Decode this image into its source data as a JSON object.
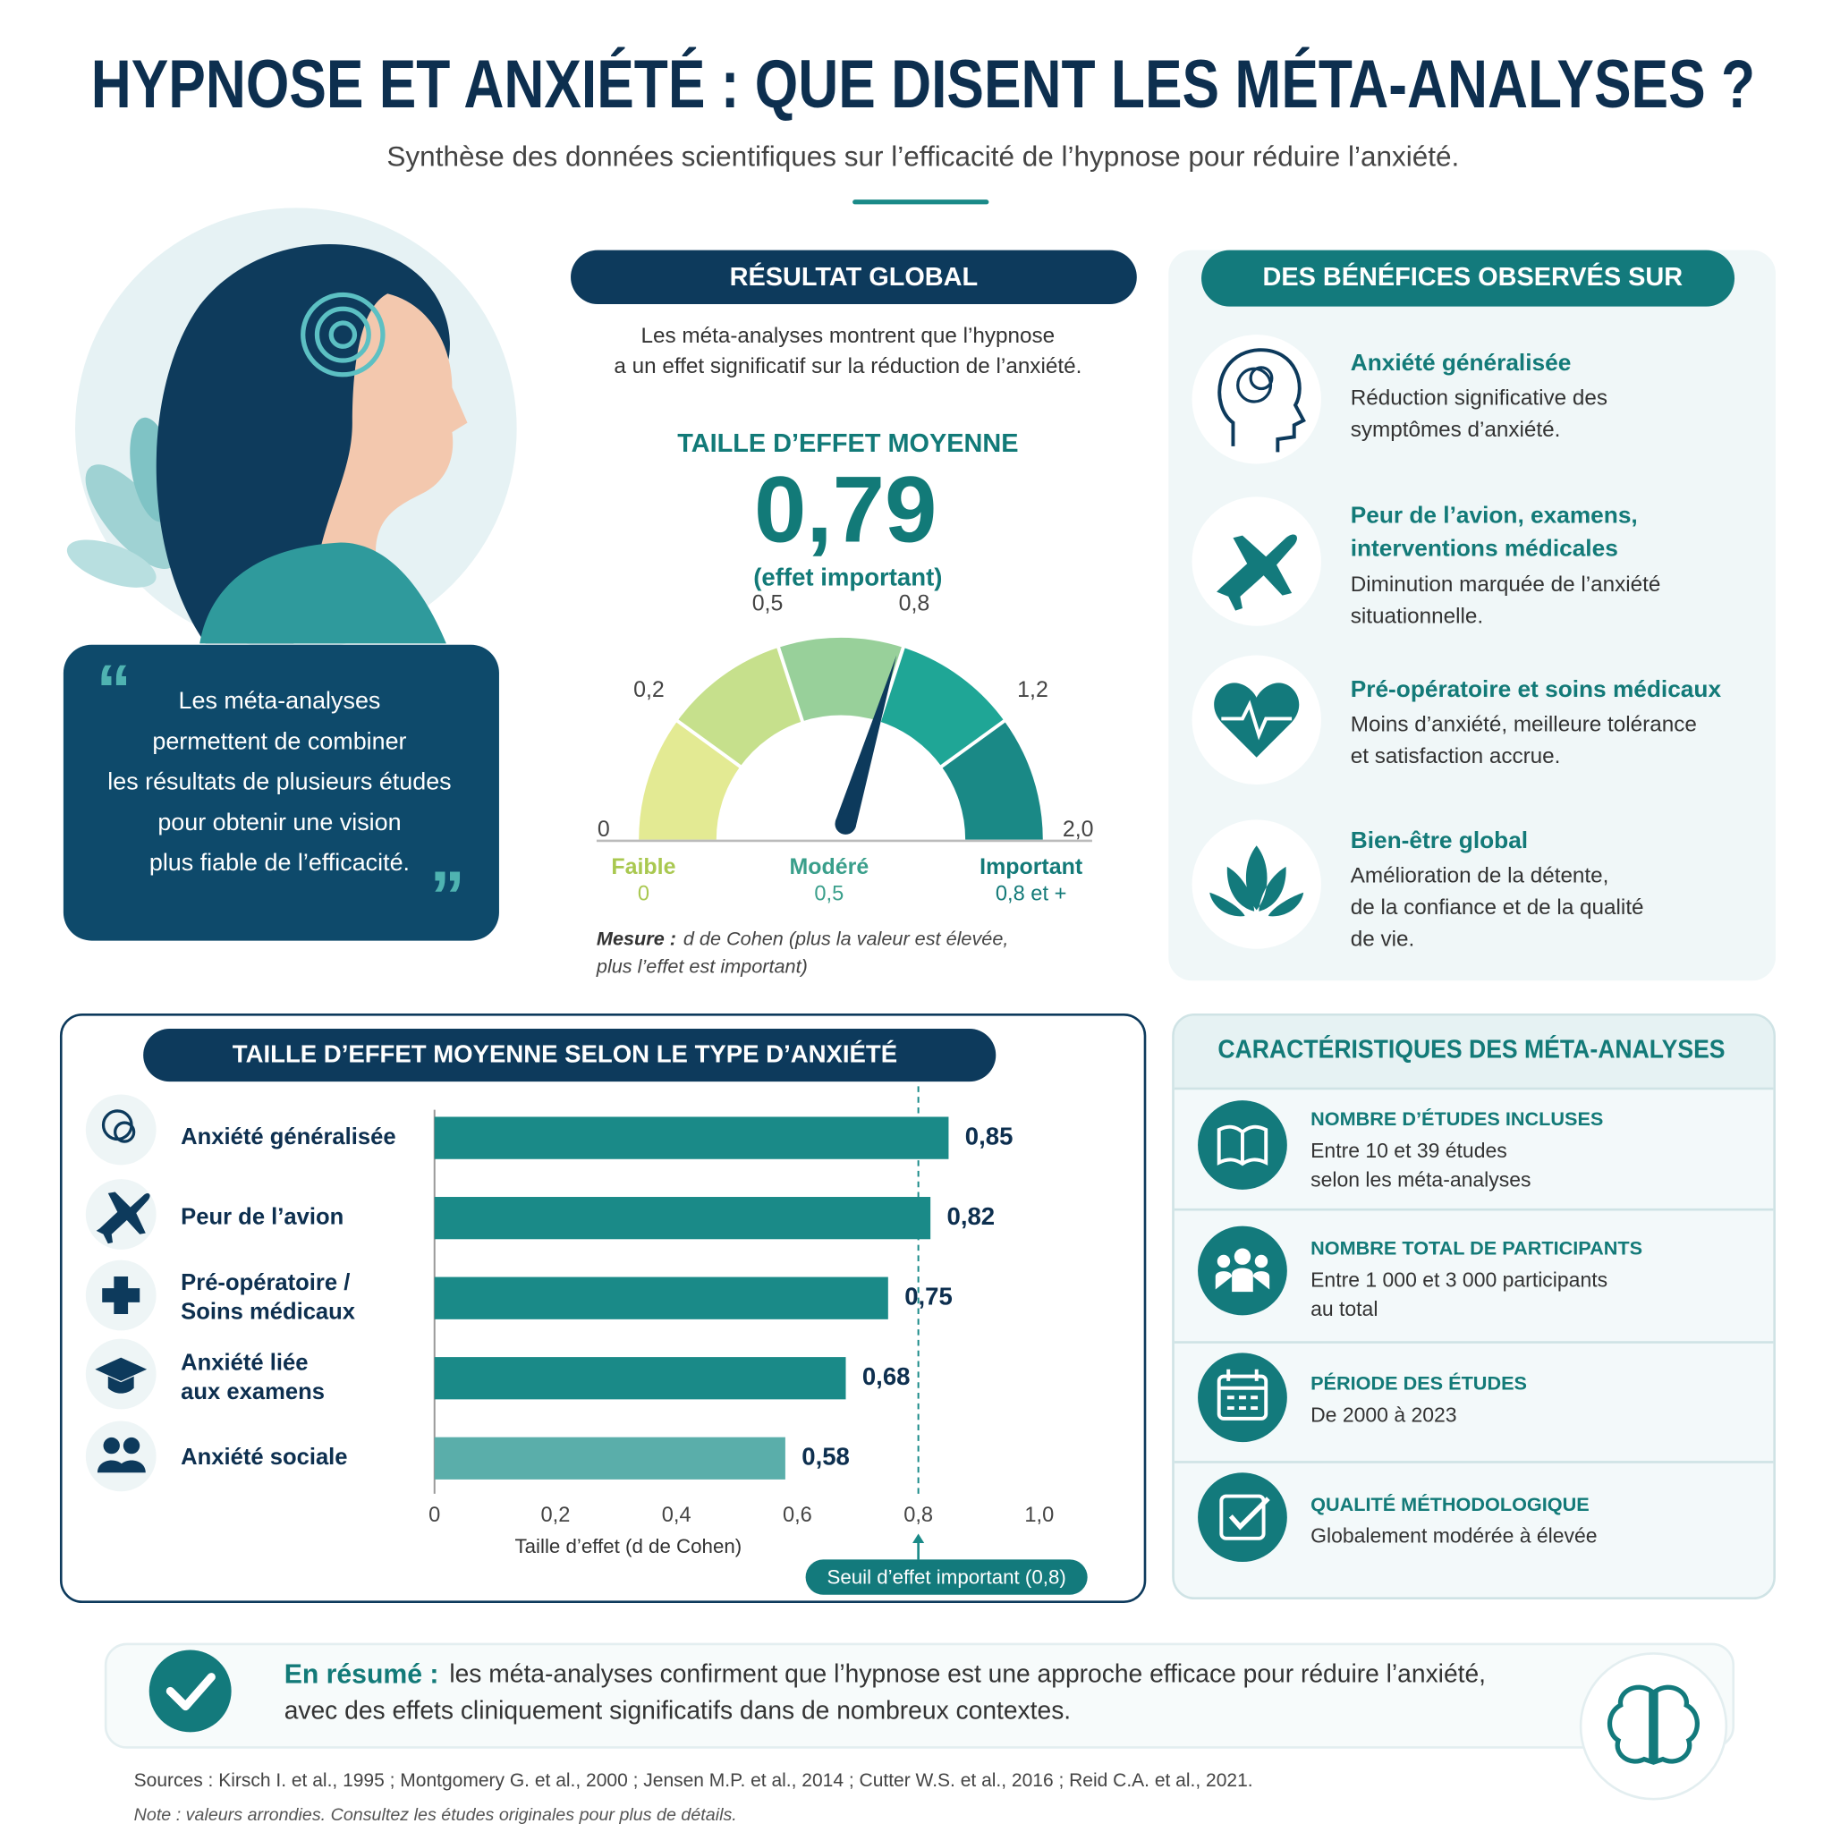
{
  "header": {
    "title": "HYPNOSE ET ANXIÉTÉ : QUE DISENT LES MÉTA-ANALYSES ?",
    "subtitle": "Synthèse des données scientifiques sur l’efficacité de l’hypnose pour réduire l’anxiété."
  },
  "quote": {
    "text": "Les méta-analyses\npermettent de combiner\nles résultats de plusieurs études\npour obtenir une vision\nplus fiable de l’efficacité."
  },
  "global_result": {
    "heading": "RÉSULTAT GLOBAL",
    "intro": "Les méta-analyses montrent que l’hypnose\na un effet significatif sur la réduction de l’anxiété."
  },
  "chart_data": [
    {
      "type": "gauge",
      "title": "TAILLE D’EFFET MOYENNE",
      "values": [
        0.79
      ],
      "value_labels": [
        "0,79"
      ],
      "subtitle": "(effet important)",
      "ticks": [
        0,
        {
          "value": 0.2,
          "label": "0,2"
        },
        {
          "value": 0.5,
          "label": "0,5"
        },
        {
          "value": 0.8,
          "label": "0,8"
        },
        {
          "value": 1.2,
          "label": "1,2"
        },
        {
          "value": 2,
          "label": "2,0"
        }
      ],
      "colors": [
        "#e3ea93",
        "#c6e08c",
        "#98d09a",
        "#1fa696",
        "#1a8986"
      ],
      "zones": [
        {
          "name": "Faible",
          "value": 0,
          "color": "#a9c850"
        },
        {
          "name": "Modéré",
          "value": {
            "value": 0.5,
            "label": "0,5"
          },
          "color": "#3a9f8b"
        },
        {
          "name": "Important",
          "value": {
            "value": 0.8,
            "label": "0,8 et +"
          },
          "color": "#137a78"
        }
      ],
      "note_label": "Mesure :",
      "note": [
        "d de Cohen (plus la valeur est élevée,",
        "plus l’effet est important)"
      ]
    },
    {
      "type": "bar",
      "orientation": "horizontal",
      "title": "TAILLE D’EFFET MOYENNE SELON LE TYPE D’ANXIÉTÉ",
      "categories": [
        "Anxiété généralisée",
        "Peur de l’avion",
        "Pré-opératoire /\nSoins médicaux",
        "Anxiété liée\naux examens",
        "Anxiété sociale"
      ],
      "values": [
        0.85,
        0.82,
        0.75,
        0.68,
        0.58
      ],
      "value_labels": [
        "0,85",
        "0,82",
        "0,75",
        "0,68",
        "0,58"
      ],
      "colors": [
        "#1a8a88",
        "#1a8a88",
        "#1a8a88",
        "#1a8a88",
        "#5aaeaa"
      ],
      "xlim": [
        0,
        1
      ],
      "xticks": [
        0,
        {
          "value": 0.2,
          "label": "0,2"
        },
        {
          "value": 0.4,
          "label": "0,4"
        },
        {
          "value": 0.6,
          "label": "0,6"
        },
        {
          "value": 0.8,
          "label": "0,8"
        },
        {
          "value": 1,
          "label": "1,0"
        }
      ],
      "x_label": "Taille d’effet (d de Cohen)",
      "threshold": {
        "value": 0.8,
        "label": "Seuil d’effet important (0,8)"
      }
    }
  ],
  "benefits": {
    "heading": "DES BÉNÉFICES OBSERVÉS SUR",
    "items": [
      {
        "title": "Anxiété généralisée",
        "text": "Réduction significative des\nsymptômes d’anxiété."
      },
      {
        "title": "Peur de l’avion, examens,\ninterventions médicales",
        "text": "Diminution marquée de l’anxiété\nsituationnelle."
      },
      {
        "title": "Pré-opératoire et soins médicaux",
        "text": "Moins d’anxiété, meilleure tolérance\net satisfaction accrue."
      },
      {
        "title": "Bien-être global",
        "text": "Amélioration de la détente,\nde la confiance et de la qualité\nde vie."
      }
    ]
  },
  "characteristics": {
    "heading": "CARACTÉRISTIQUES DES MÉTA-ANALYSES",
    "items": [
      {
        "title": "NOMBRE D’ÉTUDES INCLUSES",
        "text": "Entre 10 et 39 études\nselon les méta-analyses"
      },
      {
        "title": "NOMBRE TOTAL DE PARTICIPANTS",
        "text": "Entre 1 000 et 3 000 participants\nau total"
      },
      {
        "title": "PÉRIODE DES ÉTUDES",
        "text": "De 2000 à 2023"
      },
      {
        "title": "QUALITÉ MÉTHODOLOGIQUE",
        "text": "Globalement modérée à élevée"
      }
    ]
  },
  "summary": {
    "label": "En résumé :",
    "text": [
      "les méta-analyses confirment que l’hypnose est une approche efficace pour réduire l’anxiété,",
      "avec des effets cliniquement significatifs dans de nombreux contextes."
    ]
  },
  "sources": "Sources : Kirsch I. et al., 1995 ; Montgomery G. et al., 2000 ; Jensen M.P. et al., 2014 ; Cutter W.S. et al., 2016 ; Reid C.A. et al., 2021.",
  "note": "Note : valeurs arrondies. Consultez les études originales pour plus de détails."
}
